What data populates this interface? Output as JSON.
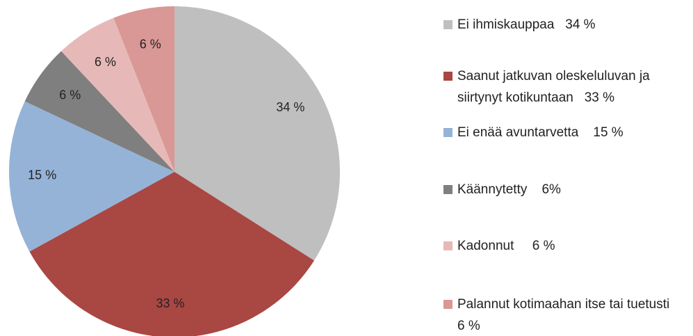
{
  "chart_data": {
    "type": "pie",
    "categories": [
      "Ei ihmiskauppaa   34 %",
      "Saanut jatkuvan oleskeluluvan ja siirtynyt kotikuntaan   33 %",
      "Ei enää avuntarvetta    15 %",
      "Käännytetty    6%",
      "Kadonnut     6 %",
      "Palannut kotimaahan itse tai tuetusti    6 %"
    ],
    "values": [
      34,
      33,
      15,
      6,
      6,
      6
    ],
    "value_labels": [
      "34 %",
      "33 %",
      "15 %",
      "6 %",
      "6 %",
      "6 %"
    ],
    "colors": [
      "#bfbfbf",
      "#a94743",
      "#95b3d7",
      "#7f7f7f",
      "#e6b9b8",
      "#d99795"
    ],
    "legend": "right"
  }
}
